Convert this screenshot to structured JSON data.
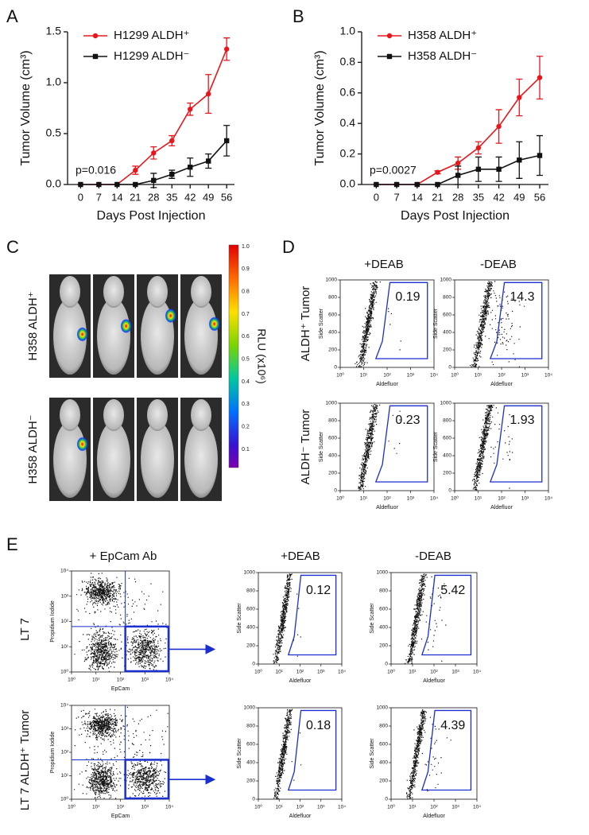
{
  "panel_labels": [
    "A",
    "B",
    "C",
    "D",
    "E"
  ],
  "chart_data": [
    {
      "type": "line",
      "x_label": "Days Post Injection",
      "y_label": "Tumor Volume (cm³)",
      "annotation": "p=0.016",
      "x": [
        0,
        7,
        14,
        21,
        28,
        35,
        42,
        49,
        56
      ],
      "xlim": [
        -5,
        59
      ],
      "xticks": [
        0,
        7,
        14,
        21,
        28,
        35,
        42,
        49,
        56
      ],
      "ylim": [
        0,
        1.5
      ],
      "yticks": [
        {
          "value": 0,
          "label": "0.0"
        },
        {
          "value": 0.5,
          "label": "0.5"
        },
        {
          "value": 1,
          "label": "1.0"
        },
        {
          "value": 1.5,
          "label": "1.5"
        }
      ],
      "legend": "upper left",
      "series": [
        {
          "name": "H1299 ALDH⁺",
          "color": "#e8161b",
          "marker": "circle",
          "values": [
            0,
            0,
            0,
            0.14,
            0.31,
            0.43,
            0.74,
            0.89,
            1.33
          ],
          "errors": [
            0,
            0,
            0,
            0.04,
            0.06,
            0.05,
            0.06,
            0.19,
            0.11
          ]
        },
        {
          "name": "H1299 ALDH⁻",
          "color": "#111111",
          "marker": "square",
          "values": [
            0,
            0,
            0,
            0,
            0.04,
            0.1,
            0.17,
            0.23,
            0.43
          ],
          "errors": [
            0,
            0,
            0,
            0,
            0.07,
            0.04,
            0.09,
            0.07,
            0.15
          ]
        }
      ]
    },
    {
      "type": "line",
      "x_label": "Days Post Injection",
      "y_label": "Tumor Volume (cm³)",
      "annotation": "p=0.0027",
      "x": [
        0,
        7,
        14,
        21,
        28,
        35,
        42,
        49,
        56
      ],
      "xlim": [
        -5,
        59
      ],
      "xticks": [
        0,
        7,
        14,
        21,
        28,
        35,
        42,
        49,
        56
      ],
      "ylim": [
        0,
        1
      ],
      "yticks": [
        {
          "value": 0,
          "label": "0.0"
        },
        {
          "value": 0.2,
          "label": "0.2"
        },
        {
          "value": 0.4,
          "label": "0.4"
        },
        {
          "value": 0.6,
          "label": "0.6"
        },
        {
          "value": 0.8,
          "label": "0.8"
        },
        {
          "value": 1,
          "label": "1.0"
        }
      ],
      "legend": "upper left",
      "series": [
        {
          "name": "H358 ALDH⁺",
          "color": "#e8161b",
          "marker": "circle",
          "values": [
            0,
            0,
            0,
            0.08,
            0.14,
            0.24,
            0.38,
            0.57,
            0.7
          ],
          "errors": [
            0,
            0,
            0,
            0.01,
            0.04,
            0.04,
            0.11,
            0.12,
            0.14
          ]
        },
        {
          "name": "H358 ALDH⁻",
          "color": "#111111",
          "marker": "square",
          "values": [
            0,
            0,
            0,
            0,
            0.06,
            0.1,
            0.1,
            0.16,
            0.19
          ],
          "errors": [
            0,
            0,
            0,
            0,
            0.06,
            0.08,
            0.08,
            0.12,
            0.13
          ]
        }
      ]
    }
  ],
  "panel_c": {
    "row_labels": [
      "H358 ALDH⁺",
      "H358 ALDH⁻"
    ],
    "colorbar_label": "RLU (x10⁶)",
    "colorbar_ticks": [
      "1.0",
      "0.9",
      "0.8",
      "0.7",
      "0.6",
      "0.5",
      "0.4",
      "0.3",
      "0.2",
      "0.1"
    ]
  },
  "panel_d": {
    "column_titles": [
      "+DEAB",
      "-DEAB"
    ],
    "row_labels": [
      "ALDH⁺ Tumor",
      "ALDH⁻ Tumor"
    ],
    "gate_values": [
      [
        "0.19",
        "14.3"
      ],
      [
        "0.23",
        "1.93"
      ]
    ],
    "x_axis_label": "Aldefluor",
    "y_axis_label": "Side Scatter",
    "x_ticks": [
      "10⁰",
      "10¹",
      "10²",
      "10³",
      "10⁴"
    ],
    "y_ticks": [
      "0",
      "200",
      "400",
      "600",
      "800",
      "1000"
    ]
  },
  "panel_e": {
    "column_titles": [
      "+ EpCam Ab",
      "+DEAB",
      "-DEAB"
    ],
    "row_labels": [
      "LT 7",
      "LT 7 ALDH⁺ Tumor"
    ],
    "gate_values": [
      [
        "0.12",
        "5.42"
      ],
      [
        "0.18",
        "4.39"
      ]
    ],
    "x_axis_labels": [
      "EpCam",
      "Aldefluor"
    ],
    "y_axis_labels": [
      "Propidium Iodide",
      "Side Scatter"
    ],
    "log_ticks": [
      "10⁰",
      "10¹",
      "10²",
      "10³",
      "10⁴"
    ],
    "linear_ticks": [
      "0",
      "200",
      "400",
      "600",
      "800",
      "1000"
    ]
  }
}
